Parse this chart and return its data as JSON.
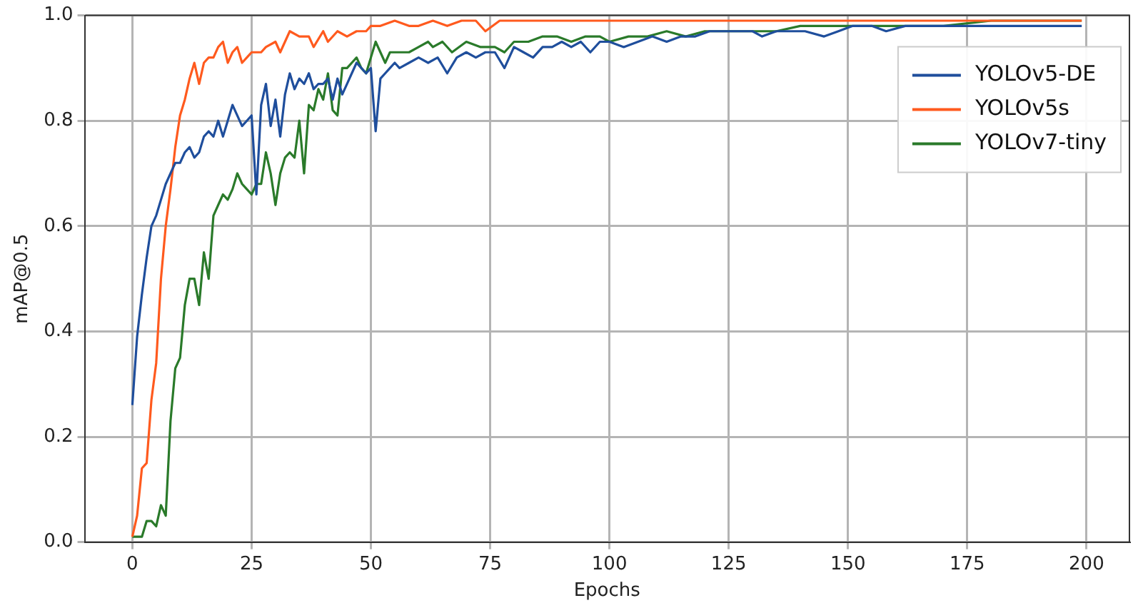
{
  "chart_data": {
    "type": "line",
    "xlabel": "Epochs",
    "ylabel": "mAP@0.5",
    "xlim": [
      -10,
      209
    ],
    "ylim": [
      0,
      1
    ],
    "xticks": [
      0,
      25,
      50,
      75,
      100,
      125,
      150,
      175,
      200
    ],
    "yticks": [
      {
        "value": 0,
        "label": "0.0"
      },
      {
        "value": 0.2,
        "label": "0.2"
      },
      {
        "value": 0.4,
        "label": "0.4"
      },
      {
        "value": 0.6,
        "label": "0.6"
      },
      {
        "value": 0.8,
        "label": "0.8"
      },
      {
        "value": 1,
        "label": "1.0"
      }
    ],
    "grid": true,
    "legend": "top right",
    "marker": "none",
    "line_style": "solid",
    "series": [
      {
        "name": "YOLOv5-DE",
        "color": "#1f4e9c",
        "x": [
          0,
          1,
          2,
          3,
          4,
          5,
          6,
          7,
          8,
          9,
          10,
          11,
          12,
          13,
          14,
          15,
          16,
          17,
          18,
          19,
          20,
          21,
          22,
          23,
          24,
          25,
          26,
          27,
          28,
          29,
          30,
          31,
          32,
          33,
          34,
          35,
          36,
          37,
          38,
          39,
          40,
          41,
          42,
          43,
          44,
          45,
          46,
          47,
          48,
          49,
          50,
          51,
          52,
          53,
          54,
          55,
          56,
          58,
          60,
          62,
          64,
          66,
          68,
          70,
          72,
          74,
          76,
          78,
          80,
          82,
          84,
          86,
          88,
          90,
          92,
          94,
          96,
          98,
          100,
          103,
          106,
          109,
          112,
          115,
          118,
          121,
          124,
          127,
          130,
          132,
          135,
          138,
          141,
          145,
          148,
          151,
          155,
          158,
          162,
          166,
          170,
          175,
          180,
          185,
          190,
          195,
          199
        ],
        "values": [
          0.26,
          0.39,
          0.47,
          0.54,
          0.6,
          0.62,
          0.65,
          0.68,
          0.7,
          0.72,
          0.72,
          0.74,
          0.75,
          0.73,
          0.74,
          0.77,
          0.78,
          0.77,
          0.8,
          0.77,
          0.8,
          0.83,
          0.81,
          0.79,
          0.8,
          0.81,
          0.66,
          0.83,
          0.87,
          0.79,
          0.84,
          0.77,
          0.85,
          0.89,
          0.86,
          0.88,
          0.87,
          0.89,
          0.86,
          0.87,
          0.87,
          0.88,
          0.84,
          0.88,
          0.85,
          0.87,
          0.89,
          0.91,
          0.9,
          0.89,
          0.9,
          0.78,
          0.88,
          0.89,
          0.9,
          0.91,
          0.9,
          0.91,
          0.92,
          0.91,
          0.92,
          0.89,
          0.92,
          0.93,
          0.92,
          0.93,
          0.93,
          0.9,
          0.94,
          0.93,
          0.92,
          0.94,
          0.94,
          0.95,
          0.94,
          0.95,
          0.93,
          0.95,
          0.95,
          0.94,
          0.95,
          0.96,
          0.95,
          0.96,
          0.96,
          0.97,
          0.97,
          0.97,
          0.97,
          0.96,
          0.97,
          0.97,
          0.97,
          0.96,
          0.97,
          0.98,
          0.98,
          0.97,
          0.98,
          0.98,
          0.98,
          0.98,
          0.98,
          0.98,
          0.98,
          0.98,
          0.98
        ]
      },
      {
        "name": "YOLOv5s",
        "color": "#ff5a1e",
        "x": [
          0,
          1,
          2,
          3,
          4,
          5,
          6,
          7,
          8,
          9,
          10,
          11,
          12,
          13,
          14,
          15,
          16,
          17,
          18,
          19,
          20,
          21,
          22,
          23,
          24,
          25,
          27,
          28,
          30,
          31,
          33,
          35,
          37,
          38,
          40,
          41,
          43,
          45,
          47,
          49,
          50,
          52,
          55,
          58,
          60,
          63,
          66,
          69,
          72,
          74,
          77,
          80,
          85,
          90,
          95,
          100,
          110,
          120,
          130,
          140,
          150,
          160,
          170,
          180,
          190,
          199
        ],
        "values": [
          0.01,
          0.05,
          0.14,
          0.15,
          0.27,
          0.34,
          0.5,
          0.6,
          0.67,
          0.75,
          0.81,
          0.84,
          0.88,
          0.91,
          0.87,
          0.91,
          0.92,
          0.92,
          0.94,
          0.95,
          0.91,
          0.93,
          0.94,
          0.91,
          0.92,
          0.93,
          0.93,
          0.94,
          0.95,
          0.93,
          0.97,
          0.96,
          0.96,
          0.94,
          0.97,
          0.95,
          0.97,
          0.96,
          0.97,
          0.97,
          0.98,
          0.98,
          0.99,
          0.98,
          0.98,
          0.99,
          0.98,
          0.99,
          0.99,
          0.97,
          0.99,
          0.99,
          0.99,
          0.99,
          0.99,
          0.99,
          0.99,
          0.99,
          0.99,
          0.99,
          0.99,
          0.99,
          0.99,
          0.99,
          0.99,
          0.99
        ]
      },
      {
        "name": "YOLOv7-tiny",
        "color": "#2a7a2a",
        "x": [
          0,
          1,
          2,
          3,
          4,
          5,
          6,
          7,
          8,
          9,
          10,
          11,
          12,
          13,
          14,
          15,
          16,
          17,
          18,
          19,
          20,
          21,
          22,
          23,
          24,
          25,
          26,
          27,
          28,
          29,
          30,
          31,
          32,
          33,
          34,
          35,
          36,
          37,
          38,
          39,
          40,
          41,
          42,
          43,
          44,
          45,
          46,
          47,
          48,
          49,
          50,
          51,
          52,
          53,
          54,
          55,
          56,
          58,
          60,
          62,
          63,
          65,
          67,
          70,
          73,
          76,
          78,
          80,
          83,
          86,
          89,
          92,
          95,
          98,
          100,
          104,
          108,
          112,
          116,
          120,
          125,
          130,
          135,
          140,
          145,
          150,
          155,
          160,
          170,
          180,
          190,
          199
        ],
        "values": [
          0.01,
          0.01,
          0.01,
          0.04,
          0.04,
          0.03,
          0.07,
          0.05,
          0.23,
          0.33,
          0.35,
          0.45,
          0.5,
          0.5,
          0.45,
          0.55,
          0.5,
          0.62,
          0.64,
          0.66,
          0.65,
          0.67,
          0.7,
          0.68,
          0.67,
          0.66,
          0.68,
          0.68,
          0.74,
          0.7,
          0.64,
          0.7,
          0.73,
          0.74,
          0.73,
          0.8,
          0.7,
          0.83,
          0.82,
          0.86,
          0.84,
          0.89,
          0.82,
          0.81,
          0.9,
          0.9,
          0.91,
          0.92,
          0.9,
          0.89,
          0.92,
          0.95,
          0.93,
          0.91,
          0.93,
          0.93,
          0.93,
          0.93,
          0.94,
          0.95,
          0.94,
          0.95,
          0.93,
          0.95,
          0.94,
          0.94,
          0.93,
          0.95,
          0.95,
          0.96,
          0.96,
          0.95,
          0.96,
          0.96,
          0.95,
          0.96,
          0.96,
          0.97,
          0.96,
          0.97,
          0.97,
          0.97,
          0.97,
          0.98,
          0.98,
          0.98,
          0.98,
          0.98,
          0.98,
          0.99,
          0.99,
          0.99
        ]
      }
    ]
  }
}
